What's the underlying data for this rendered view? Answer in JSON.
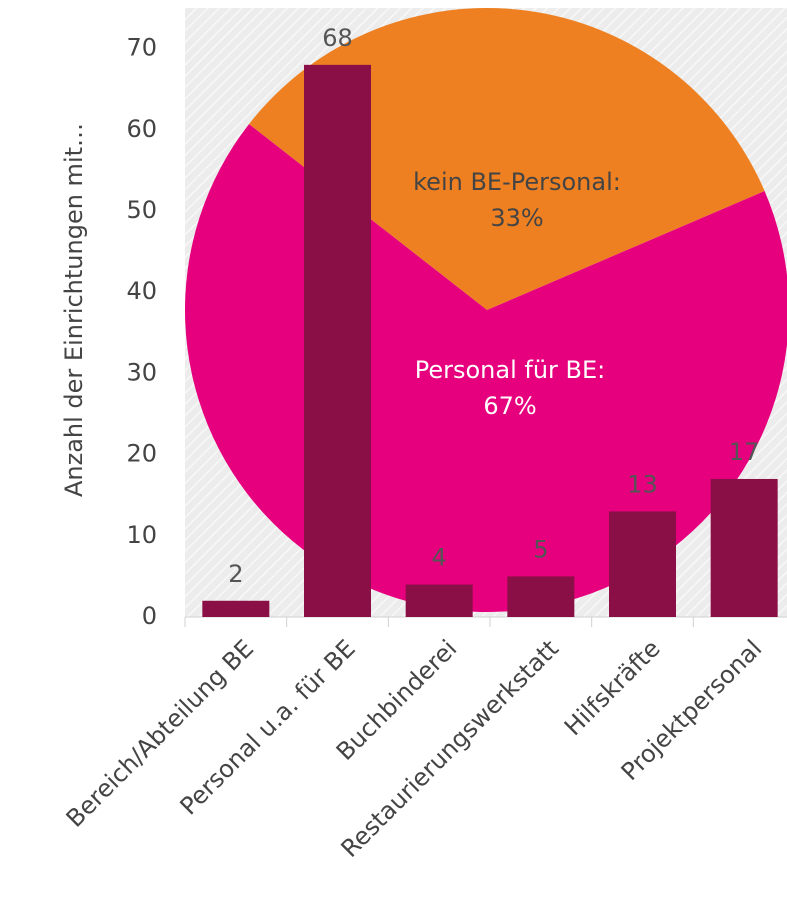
{
  "chart_data": [
    {
      "type": "bar",
      "y_label": "Anzahl der Einrichtungen mit…",
      "categories": [
        "Bereich/Abteilung BE",
        "Personal u.a. für BE",
        "Buchbinderei",
        "Restaurierungswerkstatt",
        "Hilfskräfte",
        "Projektpersonal"
      ],
      "values": [
        2,
        68,
        4,
        5,
        13,
        17
      ],
      "color": "#8b0f47",
      "ylim": [
        0,
        75
      ],
      "yticks": [
        0,
        10,
        20,
        30,
        40,
        50,
        60,
        70
      ]
    },
    {
      "type": "pie",
      "categories": [
        "kein BE-Personal:",
        "Personal für BE:"
      ],
      "values": [
        33,
        67
      ],
      "value_labels": [
        "33%",
        "67%"
      ],
      "colors": [
        "#ee8022",
        "#e6007e"
      ]
    }
  ]
}
